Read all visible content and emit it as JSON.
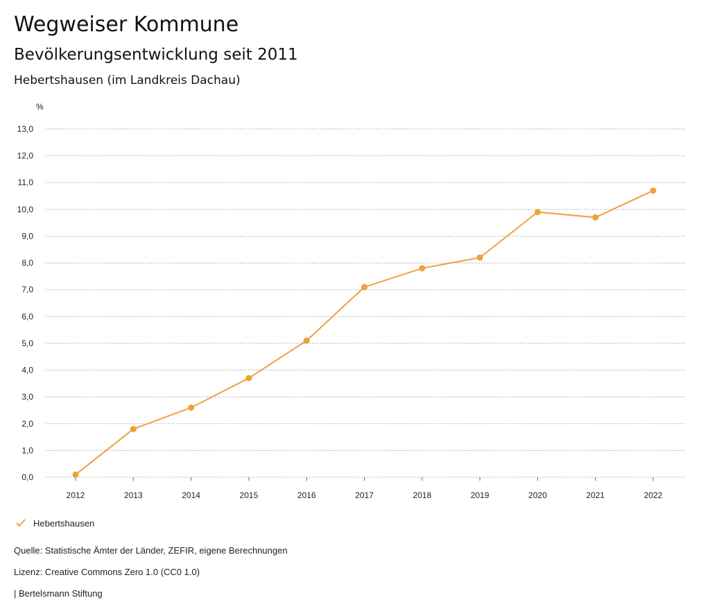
{
  "header": {
    "title": "Wegweiser Kommune",
    "subtitle": "Bevölkerungsentwicklung seit 2011",
    "region": "Hebertshausen (im Landkreis Dachau)"
  },
  "chart_data": {
    "type": "line",
    "ylabel": "%",
    "xlabel": "",
    "x": [
      "2012",
      "2013",
      "2014",
      "2015",
      "2016",
      "2017",
      "2018",
      "2019",
      "2020",
      "2021",
      "2022"
    ],
    "series": [
      {
        "name": "Hebertshausen",
        "values": [
          0.1,
          1.8,
          2.6,
          3.7,
          5.1,
          7.1,
          7.8,
          8.2,
          9.9,
          9.7,
          10.7
        ]
      }
    ],
    "ylim": [
      0,
      13
    ],
    "yticks": [
      "0,0",
      "1,0",
      "2,0",
      "3,0",
      "4,0",
      "5,0",
      "6,0",
      "7,0",
      "8,0",
      "9,0",
      "10,0",
      "11,0",
      "12,0",
      "13,0"
    ],
    "grid": true,
    "legend_position": "bottom-left",
    "color": "#f0a03c"
  },
  "footer": {
    "source": "Quelle: Statistische Ämter der Länder, ZEFIR, eigene Berechnungen",
    "license": "Lizenz: Creative Commons Zero 1.0 (CC0 1.0)",
    "publisher": "| Bertelsmann Stiftung"
  }
}
